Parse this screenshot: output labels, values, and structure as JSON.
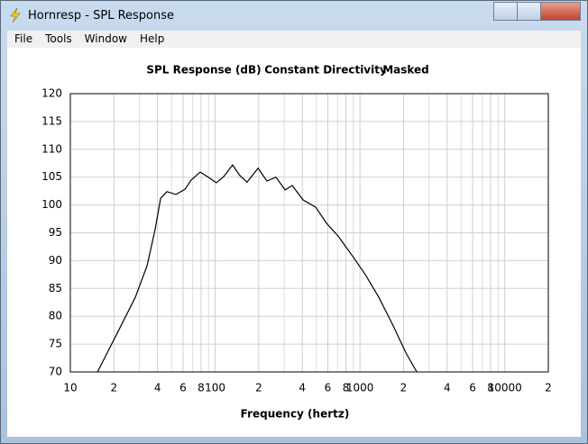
{
  "window": {
    "title": "Hornresp - SPL Response",
    "menu": [
      "File",
      "Tools",
      "Window",
      "Help"
    ]
  },
  "chart_data": {
    "type": "line",
    "title_parts": [
      "SPL Response (dB)",
      "Constant Directivity",
      "Masked"
    ],
    "xlabel": "Frequency (hertz)",
    "x": [
      15.4,
      21.1,
      28.1,
      33.9,
      38.5,
      42,
      46.4,
      53.6,
      61.8,
      68.4,
      78.9,
      88.5,
      102,
      114.6,
      132,
      148,
      166,
      198,
      228,
      263,
      304,
      341,
      405,
      495,
      588,
      708,
      879,
      1090,
      1352,
      1675,
      2080,
      2472
    ],
    "values": [
      70,
      77,
      83.4,
      89.1,
      95.6,
      101.2,
      102.4,
      101.9,
      102.8,
      104.5,
      105.9,
      105.1,
      104,
      105.1,
      107.2,
      105.3,
      104.1,
      106.6,
      104.3,
      105,
      102.7,
      103.5,
      100.9,
      99.6,
      96.7,
      94.4,
      91,
      87.5,
      83.4,
      78.6,
      73.4,
      70
    ],
    "color": "#000000",
    "xlog": true,
    "xlim": [
      10,
      20000
    ],
    "ylim": [
      70,
      120
    ],
    "yticks": [
      70,
      75,
      80,
      85,
      90,
      95,
      100,
      105,
      110,
      115,
      120
    ],
    "xticks": [
      10,
      {
        "value": 20,
        "label": "2"
      },
      {
        "value": 40,
        "label": "4"
      },
      {
        "value": 60,
        "label": "6"
      },
      {
        "value": 80,
        "label": "8"
      },
      100,
      {
        "value": 200,
        "label": "2"
      },
      {
        "value": 400,
        "label": "4"
      },
      {
        "value": 600,
        "label": "6"
      },
      {
        "value": 800,
        "label": "8"
      },
      1000,
      {
        "value": 2000,
        "label": "2"
      },
      {
        "value": 4000,
        "label": "4"
      },
      {
        "value": 6000,
        "label": "6"
      },
      {
        "value": 8000,
        "label": "8"
      },
      10000,
      {
        "value": 20000,
        "label": "2"
      }
    ],
    "xminor_ticks": [
      30,
      50,
      70,
      90,
      300,
      500,
      700,
      900,
      3000,
      5000,
      7000,
      9000
    ],
    "grid": true
  }
}
